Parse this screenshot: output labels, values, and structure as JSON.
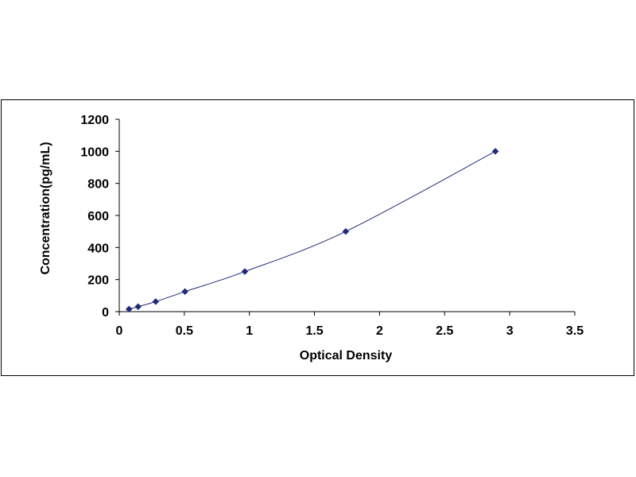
{
  "chart_data": {
    "type": "scatter",
    "title": "",
    "xlabel": "Optical Density",
    "ylabel": "Concentration(pg/mL)",
    "xlim": [
      0,
      3.5
    ],
    "ylim": [
      0,
      1200
    ],
    "x_ticks": [
      "0",
      "0.5",
      "1",
      "1.5",
      "2",
      "2.5",
      "3",
      "3.5"
    ],
    "y_ticks": [
      "0",
      "200",
      "400",
      "600",
      "800",
      "1000",
      "1200"
    ],
    "grid": false,
    "legend": "none",
    "series": [
      {
        "x": [
          0.075,
          0.145,
          0.28,
          0.505,
          0.965,
          1.74,
          2.89
        ],
        "y": [
          15.6,
          31.2,
          62.5,
          125,
          250,
          500,
          1000
        ],
        "marker": "diamond",
        "trendline": "smooth"
      }
    ],
    "colors": {
      "marker": "#1f2b78",
      "line": "#1f2b78",
      "axis": "#000000"
    }
  }
}
